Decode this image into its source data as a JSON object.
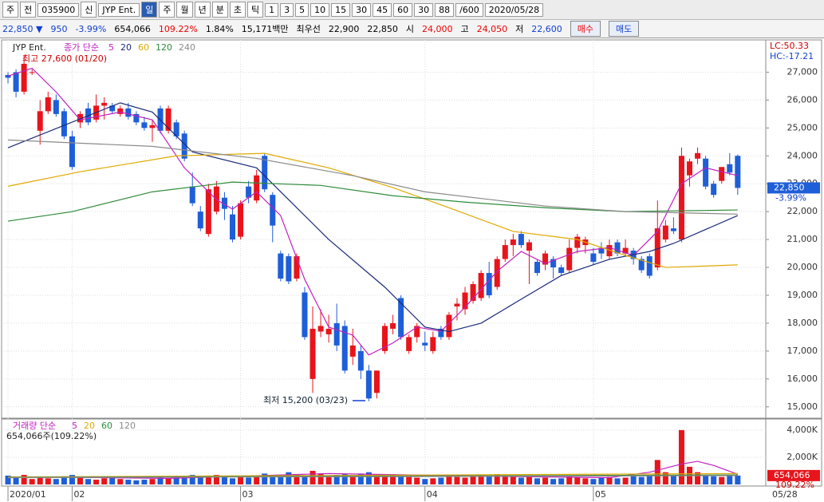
{
  "toolbar": {
    "items": [
      "주",
      "전",
      "035900",
      "신",
      "JYP Ent.",
      "일",
      "주",
      "월",
      "년",
      "분",
      "초",
      "틱",
      "1",
      "3",
      "5",
      "10",
      "15",
      "30",
      "45",
      "60",
      "30",
      "88",
      "/600",
      "2020/05/28"
    ]
  },
  "info": {
    "price": "22,850 ▼",
    "change": "950",
    "rate": "-3.99%",
    "volume": "654,066",
    "vol_rate": "109.22%",
    "turnover": "1.84%",
    "amount": "15,171백만",
    "best_label": "최우선",
    "ask": "22,900",
    "bid": "22,850",
    "open_label": "시",
    "open": "24,000",
    "high_label": "고",
    "high": "24,050",
    "low_label": "저",
    "low": "22,600",
    "buy": "매수",
    "sell": "매도"
  },
  "chart_data": {
    "type": "candlestick",
    "name": "JYP Ent.",
    "ma_label": "종가 단순",
    "annotations": {
      "max": "최고 27,600 (01/20)",
      "min": "최저 15,200 (03/23)",
      "lc": "LC:50.33",
      "hc": "HC:-17.21",
      "last": "22,850",
      "last_rate": "-3.99%"
    },
    "colors": {
      "up": "#e8141c",
      "down": "#1e5ed8"
    },
    "ylim": [
      14650,
      28100
    ],
    "yticks": [
      {
        "value": 15000,
        "label": "15,000"
      },
      {
        "value": 16000,
        "label": "16,000"
      },
      {
        "value": 17000,
        "label": "17,000"
      },
      {
        "value": 18000,
        "label": "18,000"
      },
      {
        "value": 19000,
        "label": "19,000"
      },
      {
        "value": 20000,
        "label": "20,000"
      },
      {
        "value": 21000,
        "label": "21,000"
      },
      {
        "value": 22000,
        "label": "22,000"
      },
      {
        "value": 23000,
        "label": "23,000"
      },
      {
        "value": 24000,
        "label": "24,000"
      },
      {
        "value": 25000,
        "label": "25,000"
      },
      {
        "value": 26000,
        "label": "26,000"
      },
      {
        "value": 27000,
        "label": "27,000"
      }
    ],
    "xlim": [
      -0.5,
      94.5
    ],
    "xticks": [
      {
        "value": 0,
        "label": "2020/01"
      },
      {
        "value": 8,
        "label": "02"
      },
      {
        "value": 29,
        "label": "03"
      },
      {
        "value": 52,
        "label": "04"
      },
      {
        "value": 73,
        "label": "05"
      }
    ],
    "last_date": "05/28",
    "grid": true,
    "ohlc": [
      [
        26900,
        27000,
        26600,
        26800
      ],
      [
        27000,
        27100,
        26100,
        26300
      ],
      [
        26300,
        27600,
        26200,
        27300
      ],
      [
        27000,
        27100,
        26900,
        27000
      ],
      [
        24900,
        26000,
        24400,
        25600
      ],
      [
        25600,
        26300,
        25500,
        26100
      ],
      [
        26000,
        26200,
        25400,
        25500
      ],
      [
        25600,
        25700,
        24600,
        24700
      ],
      [
        24700,
        24900,
        23500,
        23600
      ],
      [
        25200,
        25600,
        25000,
        25500
      ],
      [
        25700,
        25900,
        25100,
        25200
      ],
      [
        25300,
        26200,
        25200,
        25800
      ],
      [
        25800,
        26100,
        25300,
        25900
      ],
      [
        25800,
        25900,
        25500,
        25600
      ],
      [
        25500,
        25800,
        25400,
        25700
      ],
      [
        25700,
        25900,
        25300,
        25400
      ],
      [
        25500,
        25600,
        25100,
        25200
      ],
      [
        25200,
        25400,
        24900,
        25000
      ],
      [
        25000,
        25300,
        24500,
        25100
      ],
      [
        25700,
        25800,
        24800,
        24900
      ],
      [
        24900,
        25800,
        24800,
        25700
      ],
      [
        25200,
        25300,
        24600,
        24700
      ],
      [
        24800,
        24900,
        23800,
        23900
      ],
      [
        22900,
        23400,
        22200,
        22300
      ],
      [
        22000,
        22200,
        21300,
        21400
      ],
      [
        21200,
        23000,
        21100,
        22800
      ],
      [
        22000,
        23100,
        21900,
        22900
      ],
      [
        22500,
        22700,
        21700,
        22100
      ],
      [
        21900,
        22200,
        20900,
        21000
      ],
      [
        21100,
        22400,
        21000,
        22300
      ],
      [
        22900,
        23100,
        22300,
        22500
      ],
      [
        22400,
        23500,
        22300,
        23300
      ],
      [
        24000,
        24100,
        22700,
        22800
      ],
      [
        22600,
        22700,
        20900,
        21500
      ],
      [
        20500,
        20600,
        19500,
        19600
      ],
      [
        20400,
        20500,
        19400,
        19500
      ],
      [
        19600,
        20500,
        19500,
        20400
      ],
      [
        19100,
        19300,
        17400,
        17500
      ],
      [
        16000,
        18600,
        15500,
        17800
      ],
      [
        17700,
        18500,
        17500,
        17900
      ],
      [
        17600,
        18300,
        17300,
        17800
      ],
      [
        18000,
        18700,
        17000,
        17200
      ],
      [
        17900,
        18100,
        16200,
        16300
      ],
      [
        16800,
        17800,
        16500,
        17200
      ],
      [
        17000,
        17200,
        16000,
        16300
      ],
      [
        16300,
        16500,
        15200,
        15300
      ],
      [
        15500,
        16300,
        15300,
        16300
      ],
      [
        17000,
        18000,
        16900,
        17900
      ],
      [
        17800,
        18300,
        17600,
        18000
      ],
      [
        18900,
        19000,
        17400,
        17500
      ],
      [
        17000,
        17600,
        16900,
        17500
      ],
      [
        17500,
        18000,
        17300,
        17900
      ],
      [
        17300,
        17700,
        17000,
        17200
      ],
      [
        17000,
        17700,
        16900,
        17500
      ],
      [
        17800,
        17900,
        17400,
        17500
      ],
      [
        17500,
        18400,
        17400,
        18300
      ],
      [
        18600,
        18900,
        18100,
        18700
      ],
      [
        18500,
        19300,
        18300,
        19100
      ],
      [
        18800,
        19500,
        18700,
        19400
      ],
      [
        18900,
        19900,
        18800,
        19800
      ],
      [
        19800,
        20200,
        18900,
        19000
      ],
      [
        19300,
        20400,
        19200,
        20300
      ],
      [
        20300,
        21000,
        20200,
        20800
      ],
      [
        20800,
        21200,
        20400,
        21000
      ],
      [
        21200,
        21300,
        20700,
        20800
      ],
      [
        20600,
        21000,
        19400,
        20900
      ],
      [
        20200,
        20300,
        19700,
        19800
      ],
      [
        20100,
        20600,
        19900,
        20500
      ],
      [
        20300,
        20400,
        19600,
        20000
      ],
      [
        20000,
        20100,
        19700,
        19800
      ],
      [
        19900,
        21000,
        19800,
        20700
      ],
      [
        20700,
        21200,
        20500,
        21100
      ],
      [
        20800,
        21100,
        20500,
        21000
      ],
      [
        20500,
        20700,
        20100,
        20200
      ],
      [
        20700,
        20900,
        20300,
        20500
      ],
      [
        20400,
        21000,
        20300,
        20800
      ],
      [
        20900,
        21000,
        20400,
        20500
      ],
      [
        20500,
        21000,
        20400,
        20700
      ],
      [
        20600,
        20700,
        20100,
        20300
      ],
      [
        20300,
        20400,
        19800,
        19900
      ],
      [
        20400,
        20500,
        19600,
        19700
      ],
      [
        20000,
        22400,
        19900,
        21400
      ],
      [
        21000,
        21700,
        20900,
        21500
      ],
      [
        21400,
        21800,
        21200,
        21300
      ],
      [
        21000,
        24300,
        20900,
        24000
      ],
      [
        23300,
        23900,
        22900,
        23800
      ],
      [
        23900,
        24300,
        23700,
        24100
      ],
      [
        23900,
        24000,
        22800,
        22900
      ],
      [
        23000,
        23100,
        22500,
        22600
      ],
      [
        23100,
        23600,
        23000,
        23600
      ],
      [
        23700,
        24100,
        23300,
        23400
      ],
      [
        24000,
        24050,
        22600,
        22850
      ]
    ],
    "series": [
      {
        "name": "5",
        "color": "#c020c0",
        "x": [
          0,
          3,
          6,
          9,
          14,
          18,
          22,
          26,
          28,
          31,
          34,
          37,
          40,
          43,
          45,
          48,
          51,
          54,
          57,
          61,
          64,
          67,
          71,
          75,
          78,
          81,
          84,
          87,
          91
        ],
        "values": [
          26860,
          27140,
          26290,
          25290,
          25570,
          25290,
          23570,
          22430,
          22090,
          22710,
          21860,
          19570,
          17860,
          17570,
          16860,
          17290,
          17860,
          17710,
          18570,
          19860,
          20570,
          20140,
          20570,
          20710,
          20430,
          21290,
          23000,
          23570,
          23290
        ]
      },
      {
        "name": "20",
        "color": "#1a2a78",
        "x": [
          0,
          14,
          18,
          23,
          31,
          40,
          47,
          52,
          55,
          59,
          64,
          69,
          75,
          80,
          83,
          91
        ],
        "values": [
          24290,
          25900,
          25570,
          24140,
          23570,
          21000,
          19290,
          17860,
          17700,
          18000,
          18860,
          19710,
          20290,
          20570,
          20860,
          21860
        ]
      },
      {
        "name": "60",
        "color": "#e0a800",
        "x": [
          0,
          9,
          21,
          32,
          40,
          48,
          55,
          63,
          71,
          77,
          82,
          91
        ],
        "values": [
          22910,
          23430,
          24000,
          24090,
          23570,
          22860,
          22140,
          21290,
          21000,
          20430,
          20000,
          20090
        ]
      },
      {
        "name": "120",
        "color": "#2e8b3a",
        "x": [
          0,
          8,
          18,
          28,
          39,
          48,
          57,
          67,
          77,
          91
        ],
        "values": [
          21660,
          22000,
          22710,
          23060,
          22940,
          22570,
          22340,
          22140,
          22000,
          22060
        ]
      },
      {
        "name": "240",
        "color": "#8a8a8a",
        "x": [
          0,
          18,
          31,
          43,
          52,
          67,
          77,
          91
        ],
        "values": [
          24570,
          24340,
          23910,
          23290,
          22710,
          22200,
          22000,
          21910
        ]
      }
    ],
    "volume": {
      "label": "거래량 단순",
      "summary": "654,066주(109.22%)",
      "last_label": "654,066",
      "last_rate": "109.22%",
      "ylim": [
        0,
        4700
      ],
      "yticks": [
        {
          "value": 2000,
          "label": "2,000K"
        },
        {
          "value": 4000,
          "label": "4,000K"
        }
      ],
      "values": [
        650,
        500,
        700,
        400,
        550,
        450,
        400,
        600,
        700,
        500,
        400,
        350,
        450,
        500,
        400,
        350,
        300,
        350,
        400,
        500,
        450,
        600,
        550,
        700,
        500,
        650,
        700,
        550,
        450,
        600,
        500,
        650,
        800,
        700,
        550,
        900,
        700,
        650,
        1000,
        800,
        600,
        700,
        750,
        600,
        800,
        900,
        700,
        650,
        750,
        600,
        550,
        500,
        400,
        450,
        500,
        600,
        550,
        500,
        650,
        700,
        600,
        750,
        650,
        600,
        500,
        550,
        450,
        500,
        400,
        450,
        600,
        500,
        450,
        400,
        500,
        550,
        450,
        500,
        600,
        550,
        700,
        1800,
        900,
        700,
        4000,
        1300,
        900,
        700,
        600,
        550,
        700,
        654.066
      ],
      "series": [
        {
          "name": "5",
          "color": "#c020c0",
          "x": [
            0,
            20,
            40,
            60,
            75,
            80,
            84,
            86,
            88,
            91
          ],
          "values": [
            560,
            450,
            800,
            600,
            500,
            900,
            1500,
            1700,
            1400,
            750
          ]
        },
        {
          "name": "20",
          "color": "#e0a800",
          "x": [
            0,
            91
          ],
          "values": [
            550,
            800
          ]
        },
        {
          "name": "60",
          "color": "#2e8b3a",
          "x": [
            0,
            91
          ],
          "values": [
            520,
            700
          ]
        },
        {
          "name": "120",
          "color": "#8a8a8a",
          "x": [
            0,
            91
          ],
          "values": [
            500,
            650
          ]
        }
      ]
    }
  }
}
